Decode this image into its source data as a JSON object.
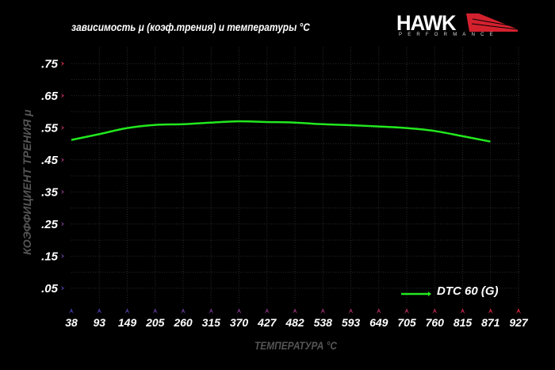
{
  "chart_data": {
    "type": "line",
    "title": "зависимость μ (коэф.трения) и температуры °C",
    "xlabel": "ТЕМПЕРАТУРА °C",
    "ylabel": "КОЭФФИЦИЕНТ ТРЕНИЯ μ",
    "x_ticks": [
      "38",
      "93",
      "149",
      "205",
      "260",
      "315",
      "370",
      "427",
      "482",
      "538",
      "593",
      "649",
      "705",
      "760",
      "815",
      "871",
      "927"
    ],
    "y_ticks": [
      ".75",
      ".65",
      ".55",
      ".45",
      ".35",
      ".25",
      ".15",
      ".05"
    ],
    "y_tick_values": [
      0.75,
      0.65,
      0.55,
      0.45,
      0.35,
      0.25,
      0.15,
      0.05
    ],
    "xlim": [
      38,
      927
    ],
    "ylim": [
      0,
      0.8
    ],
    "grid": true,
    "legend_position": "bottom-right",
    "series": [
      {
        "name": "DTC 60 (G)",
        "color": "#22e81e",
        "x": [
          38,
          93,
          149,
          205,
          260,
          315,
          370,
          427,
          482,
          538,
          593,
          649,
          705,
          760,
          815,
          871
        ],
        "y": [
          0.512,
          0.53,
          0.549,
          0.559,
          0.561,
          0.566,
          0.57,
          0.568,
          0.566,
          0.561,
          0.558,
          0.554,
          0.549,
          0.54,
          0.524,
          0.507
        ]
      }
    ]
  },
  "logo": {
    "brand": "HAWK",
    "sub": "PERFORMANCE"
  },
  "colors": {
    "axis_top": "#c8213a",
    "axis_bottom": "#3a3a9a",
    "grid": "#2a2a2a"
  }
}
